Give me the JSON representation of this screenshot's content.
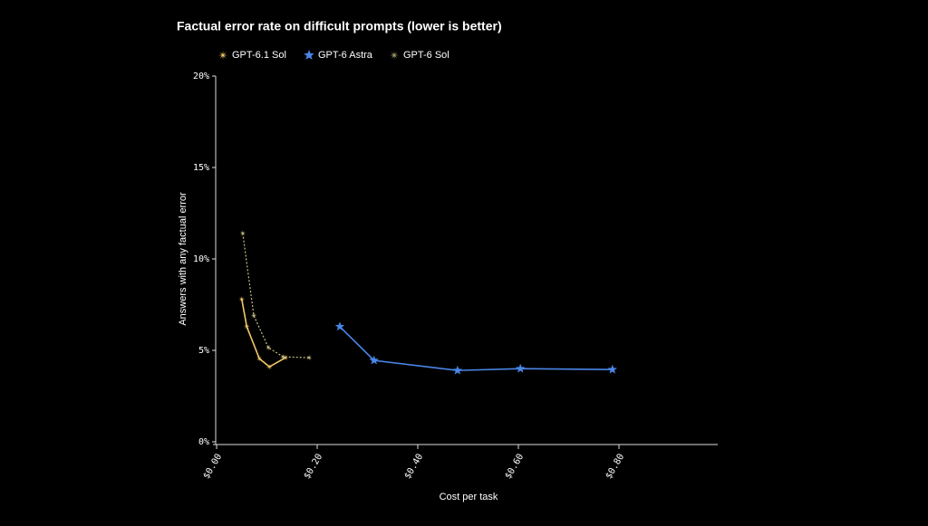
{
  "chart_data": {
    "type": "line",
    "title": "Factual error rate on difficult prompts (lower is better)",
    "x_label": "Cost per task",
    "y_label": "Answers with any factual error",
    "xlim": [
      0,
      1.0
    ],
    "ylim": [
      0,
      20
    ],
    "xticks": [
      {
        "value": 0,
        "label": "$0.00"
      },
      {
        "value": 0.2,
        "label": "$0.20"
      },
      {
        "value": 0.4,
        "label": "$0.40"
      },
      {
        "value": 0.6,
        "label": "$0.60"
      },
      {
        "value": 0.8,
        "label": "$0.80"
      }
    ],
    "yticks": [
      {
        "value": 0,
        "label": "0%"
      },
      {
        "value": 5,
        "label": "5%"
      },
      {
        "value": 10,
        "label": "10%"
      },
      {
        "value": 15,
        "label": "15%"
      },
      {
        "value": 20,
        "label": "20%"
      }
    ],
    "series": [
      {
        "name": "GPT-6.1 Sol",
        "color": "#f2c868",
        "marker": "sparkle",
        "line_style": "solid",
        "x": [
          0.05,
          0.06,
          0.085,
          0.105,
          0.137
        ],
        "values": [
          7.8,
          6.3,
          4.55,
          4.1,
          4.6
        ]
      },
      {
        "name": "GPT-6 Astra",
        "color": "#4a86e8",
        "marker": "star",
        "line_style": "solid",
        "x": [
          0.245,
          0.313,
          0.479,
          0.604,
          0.787
        ],
        "values": [
          6.3,
          4.45,
          3.9,
          4.0,
          3.95
        ]
      },
      {
        "name": "GPT-6 Sol",
        "color": "#c8bf86",
        "marker": "sparkle",
        "line_style": "dotted",
        "x": [
          0.052,
          0.074,
          0.103,
          0.132,
          0.184
        ],
        "values": [
          11.4,
          6.9,
          5.15,
          4.65,
          4.6
        ]
      }
    ]
  }
}
